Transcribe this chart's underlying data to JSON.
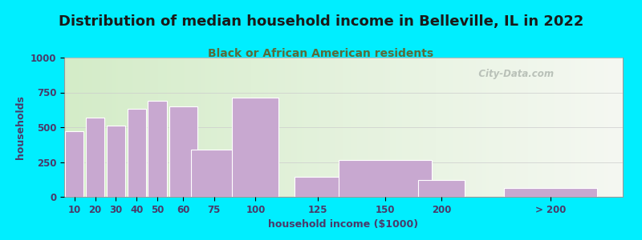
{
  "title": "Distribution of median household income in Belleville, IL in 2022",
  "subtitle": "Black or African American residents",
  "xlabel": "household income ($1000)",
  "ylabel": "households",
  "bar_labels": [
    "10",
    "20",
    "30",
    "40",
    "50",
    "60",
    "75",
    "100",
    "125",
    "150",
    "200",
    "> 200"
  ],
  "bar_values": [
    470,
    570,
    510,
    630,
    690,
    650,
    340,
    715,
    145,
    265,
    120,
    65
  ],
  "bar_widths": [
    10,
    10,
    10,
    10,
    10,
    15,
    25,
    25,
    25,
    50,
    25,
    50
  ],
  "bar_left_edges": [
    5,
    15,
    25,
    35,
    45,
    55,
    65,
    85,
    115,
    135,
    175,
    215
  ],
  "bar_color": "#c8a8d0",
  "bar_edge_color": "#ffffff",
  "bg_color_outer": "#00eeff",
  "bg_color_plot_tl": "#d4ecc8",
  "bg_color_plot_tr": "#f0f5ec",
  "bg_color_plot_bl": "#d4ecc8",
  "bg_color_plot_br": "#f0f5ec",
  "title_color": "#1a1a1a",
  "subtitle_color": "#5a6a3a",
  "axis_label_color": "#4a3a6a",
  "tick_label_color": "#4a3a6a",
  "watermark_text": "   City-Data.com",
  "watermark_color": "#b0b8b0",
  "ylim": [
    0,
    1000
  ],
  "yticks": [
    0,
    250,
    500,
    750,
    1000
  ],
  "xlim_left": 5,
  "xlim_right": 275,
  "title_fontsize": 13,
  "subtitle_fontsize": 10,
  "label_fontsize": 9,
  "tick_fontsize": 8.5
}
